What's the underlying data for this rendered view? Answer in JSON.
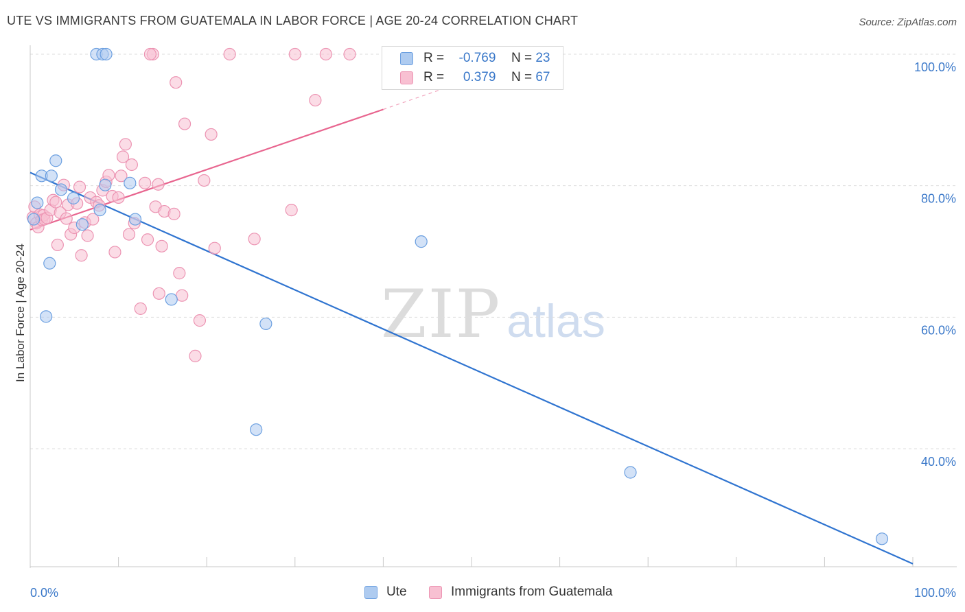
{
  "title": "UTE VS IMMIGRANTS FROM GUATEMALA IN LABOR FORCE | AGE 20-24 CORRELATION CHART",
  "source": "Source: ZipAtlas.com",
  "watermark": {
    "zip": "ZIP",
    "atlas": "atlas"
  },
  "legend": {
    "ute": {
      "r_label": "R =",
      "r_value": "-0.769",
      "n_label": "N =",
      "n_value": "23"
    },
    "guatemala": {
      "r_label": "R =",
      "r_value": "0.379",
      "n_label": "N =",
      "n_value": "67"
    }
  },
  "bottom_legend": {
    "ute": "Ute",
    "guatemala": "Immigrants from Guatemala"
  },
  "colors": {
    "ute_fill": "#aecbf0",
    "ute_stroke": "#6b9fe0",
    "ute_line": "#2f74d0",
    "guat_fill": "#f8c0d2",
    "guat_stroke": "#ec93b2",
    "guat_line": "#e8658f",
    "grid": "#dddddd",
    "tick_text": "#3a78c9"
  },
  "chart_data": {
    "type": "scatter",
    "title": "UTE VS IMMIGRANTS FROM GUATEMALA IN LABOR FORCE | AGE 20-24 CORRELATION CHART",
    "xlabel": "",
    "ylabel": "In Labor Force | Age 20-24",
    "xlim": [
      0,
      100
    ],
    "ylim": [
      20,
      102
    ],
    "x_tick_labels": [
      "0.0%",
      "100.0%"
    ],
    "y_ticks": [
      40,
      60,
      80,
      100
    ],
    "y_tick_labels": [
      "40.0%",
      "60.0%",
      "80.0%",
      "100.0%"
    ],
    "series": [
      {
        "name": "Ute",
        "r": -0.769,
        "n": 23,
        "trend": {
          "x": [
            0,
            100
          ],
          "y": [
            82.0,
            22.5
          ]
        },
        "points": [
          {
            "x": 0.4,
            "y": 74.9
          },
          {
            "x": 0.8,
            "y": 77.4
          },
          {
            "x": 1.3,
            "y": 81.5
          },
          {
            "x": 1.8,
            "y": 60.1
          },
          {
            "x": 2.2,
            "y": 68.2
          },
          {
            "x": 2.4,
            "y": 81.5
          },
          {
            "x": 2.9,
            "y": 83.8
          },
          {
            "x": 3.5,
            "y": 79.4
          },
          {
            "x": 4.9,
            "y": 78.1
          },
          {
            "x": 5.9,
            "y": 74.1
          },
          {
            "x": 7.5,
            "y": 100.0
          },
          {
            "x": 8.2,
            "y": 100.0
          },
          {
            "x": 8.6,
            "y": 100.0
          },
          {
            "x": 7.9,
            "y": 76.3
          },
          {
            "x": 8.5,
            "y": 80.1
          },
          {
            "x": 11.3,
            "y": 80.4
          },
          {
            "x": 11.9,
            "y": 74.9
          },
          {
            "x": 16.0,
            "y": 62.7
          },
          {
            "x": 25.6,
            "y": 42.9
          },
          {
            "x": 26.7,
            "y": 59.0
          },
          {
            "x": 44.3,
            "y": 71.5
          },
          {
            "x": 68.0,
            "y": 36.4
          },
          {
            "x": 96.5,
            "y": 26.3
          }
        ]
      },
      {
        "name": "Immigrants from Guatemala",
        "r": 0.379,
        "n": 67,
        "trend": {
          "x": [
            0,
            40
          ],
          "y": [
            73.3,
            91.6
          ]
        },
        "trend_dashed": {
          "x": [
            40,
            48
          ],
          "y": [
            91.6,
            95.3
          ]
        },
        "points": [
          {
            "x": 0.3,
            "y": 75.2
          },
          {
            "x": 0.5,
            "y": 76.8
          },
          {
            "x": 0.7,
            "y": 74.3
          },
          {
            "x": 0.9,
            "y": 73.7
          },
          {
            "x": 1.1,
            "y": 75.6
          },
          {
            "x": 1.3,
            "y": 74.8
          },
          {
            "x": 1.5,
            "y": 75.5
          },
          {
            "x": 1.6,
            "y": 74.9
          },
          {
            "x": 1.9,
            "y": 75.1
          },
          {
            "x": 2.3,
            "y": 76.3
          },
          {
            "x": 2.6,
            "y": 77.8
          },
          {
            "x": 2.9,
            "y": 77.5
          },
          {
            "x": 3.1,
            "y": 71.0
          },
          {
            "x": 3.4,
            "y": 75.9
          },
          {
            "x": 3.8,
            "y": 80.1
          },
          {
            "x": 4.1,
            "y": 75.0
          },
          {
            "x": 4.3,
            "y": 77.1
          },
          {
            "x": 4.6,
            "y": 72.6
          },
          {
            "x": 5.0,
            "y": 73.6
          },
          {
            "x": 5.3,
            "y": 77.3
          },
          {
            "x": 5.6,
            "y": 79.8
          },
          {
            "x": 5.8,
            "y": 69.4
          },
          {
            "x": 6.2,
            "y": 74.4
          },
          {
            "x": 6.5,
            "y": 72.4
          },
          {
            "x": 6.8,
            "y": 78.2
          },
          {
            "x": 7.1,
            "y": 74.9
          },
          {
            "x": 7.5,
            "y": 77.5
          },
          {
            "x": 7.8,
            "y": 77.0
          },
          {
            "x": 8.2,
            "y": 79.3
          },
          {
            "x": 8.6,
            "y": 80.6
          },
          {
            "x": 8.9,
            "y": 81.6
          },
          {
            "x": 9.3,
            "y": 78.4
          },
          {
            "x": 9.6,
            "y": 69.9
          },
          {
            "x": 10.0,
            "y": 78.2
          },
          {
            "x": 10.3,
            "y": 81.5
          },
          {
            "x": 10.5,
            "y": 84.4
          },
          {
            "x": 10.8,
            "y": 86.3
          },
          {
            "x": 11.2,
            "y": 72.6
          },
          {
            "x": 11.5,
            "y": 83.2
          },
          {
            "x": 11.8,
            "y": 74.3
          },
          {
            "x": 12.5,
            "y": 61.3
          },
          {
            "x": 13.0,
            "y": 80.4
          },
          {
            "x": 13.3,
            "y": 71.8
          },
          {
            "x": 13.9,
            "y": 100.0
          },
          {
            "x": 14.2,
            "y": 76.8
          },
          {
            "x": 14.6,
            "y": 63.6
          },
          {
            "x": 14.9,
            "y": 70.8
          },
          {
            "x": 15.2,
            "y": 76.1
          },
          {
            "x": 14.5,
            "y": 80.2
          },
          {
            "x": 13.6,
            "y": 100.0
          },
          {
            "x": 16.3,
            "y": 75.7
          },
          {
            "x": 16.5,
            "y": 95.7
          },
          {
            "x": 16.9,
            "y": 66.7
          },
          {
            "x": 17.2,
            "y": 63.3
          },
          {
            "x": 17.5,
            "y": 89.4
          },
          {
            "x": 18.7,
            "y": 54.1
          },
          {
            "x": 19.2,
            "y": 59.5
          },
          {
            "x": 19.7,
            "y": 80.8
          },
          {
            "x": 20.5,
            "y": 87.8
          },
          {
            "x": 20.9,
            "y": 70.5
          },
          {
            "x": 22.6,
            "y": 100.0
          },
          {
            "x": 25.4,
            "y": 71.9
          },
          {
            "x": 29.6,
            "y": 76.3
          },
          {
            "x": 30.0,
            "y": 100.0
          },
          {
            "x": 32.3,
            "y": 93.0
          },
          {
            "x": 33.5,
            "y": 100.0
          },
          {
            "x": 36.2,
            "y": 100.0
          }
        ]
      }
    ]
  }
}
